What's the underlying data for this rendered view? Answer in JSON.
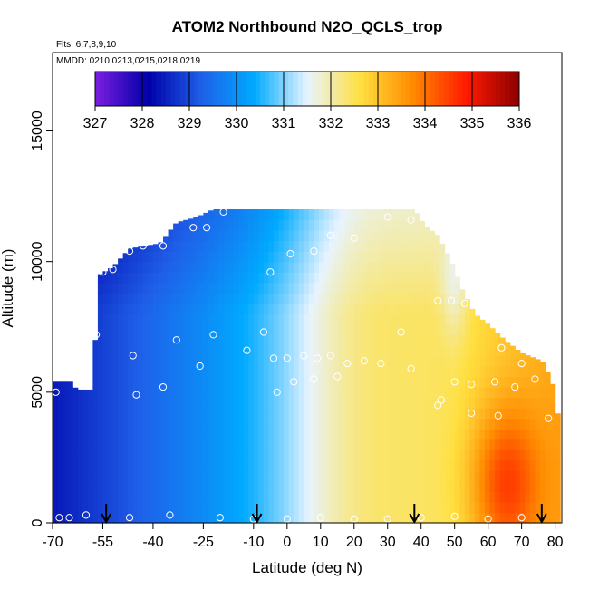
{
  "chart_data": {
    "type": "heatmap",
    "title": "ATOM2 Northbound N2O_QCLS_trop",
    "subtitle_flights": "Flts: 6,7,8,9,10",
    "subtitle_dates": "MMDD: 0210,0213,0215,0218,0219",
    "xlabel": "Latitude (deg N)",
    "ylabel": "Altitude (m)",
    "xlim": [
      -70,
      82
    ],
    "ylim": [
      0,
      18000
    ],
    "x_ticks": [
      "-70",
      "-55",
      "-40",
      "-25",
      "-10",
      "0",
      "10",
      "20",
      "30",
      "40",
      "50",
      "60",
      "70",
      "80"
    ],
    "x_tick_values": [
      -70,
      -55,
      -40,
      -25,
      -10,
      0,
      10,
      20,
      30,
      40,
      50,
      60,
      70,
      80
    ],
    "y_ticks": [
      "0",
      "5000",
      "10000",
      "15000"
    ],
    "y_tick_values": [
      0,
      5000,
      10000,
      15000
    ],
    "colorbar": {
      "ticks": [
        "327",
        "328",
        "329",
        "330",
        "331",
        "332",
        "333",
        "334",
        "335",
        "336"
      ],
      "range": [
        327,
        336
      ],
      "colors": [
        "#7b1fe0",
        "#0000a8",
        "#1f5fe8",
        "#00aaff",
        "#e8f4ff",
        "#ffe040",
        "#ff8a00",
        "#ff1a00",
        "#8b0000"
      ]
    },
    "profile_latitudes": [
      -54,
      -9,
      38,
      76
    ],
    "grid": false
  }
}
